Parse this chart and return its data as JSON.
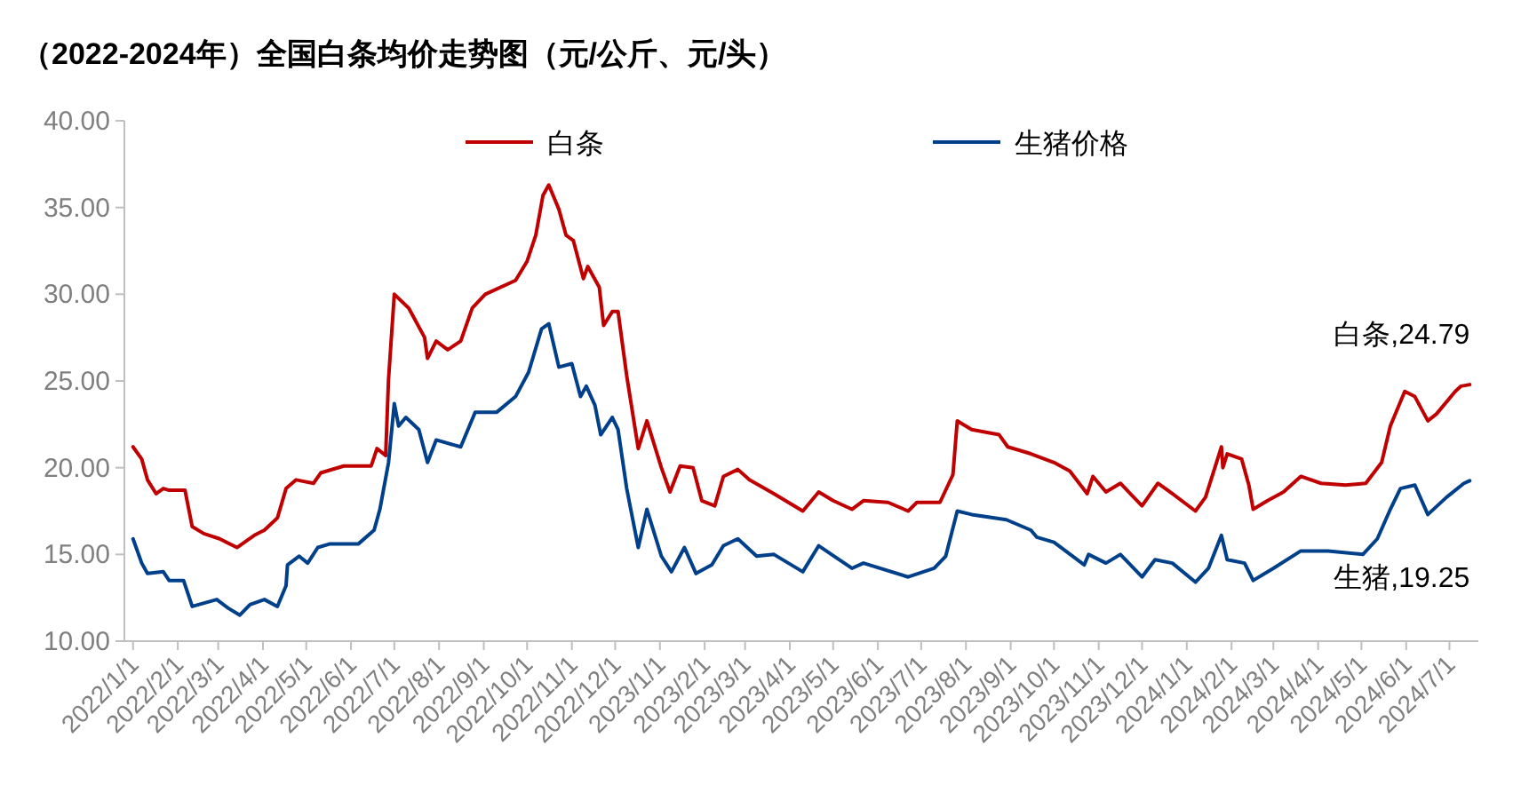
{
  "chart_data": {
    "type": "line",
    "title": "（2022-2024年）全国白条均价走势图（元/公斤、元/头）",
    "xlim": [
      "2021-12-26",
      "2024-07-21"
    ],
    "xticks": [
      {
        "value": "2022-01-01",
        "label": "2022/1/1"
      },
      {
        "value": "2022-02-01",
        "label": "2022/2/1"
      },
      {
        "value": "2022-03-01",
        "label": "2022/3/1"
      },
      {
        "value": "2022-04-01",
        "label": "2022/4/1"
      },
      {
        "value": "2022-05-01",
        "label": "2022/5/1"
      },
      {
        "value": "2022-06-01",
        "label": "2022/6/1"
      },
      {
        "value": "2022-07-01",
        "label": "2022/7/1"
      },
      {
        "value": "2022-08-01",
        "label": "2022/8/1"
      },
      {
        "value": "2022-09-01",
        "label": "2022/9/1"
      },
      {
        "value": "2022-10-01",
        "label": "2022/10/1"
      },
      {
        "value": "2022-11-01",
        "label": "2022/11/1"
      },
      {
        "value": "2022-12-01",
        "label": "2022/12/1"
      },
      {
        "value": "2023-01-01",
        "label": "2023/1/1"
      },
      {
        "value": "2023-02-01",
        "label": "2023/2/1"
      },
      {
        "value": "2023-03-01",
        "label": "2023/3/1"
      },
      {
        "value": "2023-04-01",
        "label": "2023/4/1"
      },
      {
        "value": "2023-05-01",
        "label": "2023/5/1"
      },
      {
        "value": "2023-06-01",
        "label": "2023/6/1"
      },
      {
        "value": "2023-07-01",
        "label": "2023/7/1"
      },
      {
        "value": "2023-08-01",
        "label": "2023/8/1"
      },
      {
        "value": "2023-09-01",
        "label": "2023/9/1"
      },
      {
        "value": "2023-10-01",
        "label": "2023/10/1"
      },
      {
        "value": "2023-11-01",
        "label": "2023/11/1"
      },
      {
        "value": "2023-12-01",
        "label": "2023/12/1"
      },
      {
        "value": "2024-01-01",
        "label": "2024/1/1"
      },
      {
        "value": "2024-02-01",
        "label": "2024/2/1"
      },
      {
        "value": "2024-03-01",
        "label": "2024/3/1"
      },
      {
        "value": "2024-04-01",
        "label": "2024/4/1"
      },
      {
        "value": "2024-05-01",
        "label": "2024/5/1"
      },
      {
        "value": "2024-06-01",
        "label": "2024/6/1"
      },
      {
        "value": "2024-07-01",
        "label": "2024/7/1"
      }
    ],
    "ylim": [
      10,
      40
    ],
    "yticks": [
      {
        "value": 10,
        "label": "10.00"
      },
      {
        "value": 15,
        "label": "15.00"
      },
      {
        "value": 20,
        "label": "20.00"
      },
      {
        "value": 25,
        "label": "25.00"
      },
      {
        "value": 30,
        "label": "30.00"
      },
      {
        "value": 35,
        "label": "35.00"
      },
      {
        "value": 40,
        "label": "40.00"
      }
    ],
    "grid": false,
    "legend": "top",
    "marker": "none",
    "line_style": "solid",
    "series": [
      {
        "name": "白条",
        "color": "#c00000",
        "x": [
          "2022-01-01",
          "2022-01-07",
          "2022-01-11",
          "2022-01-17",
          "2022-01-22",
          "2022-01-26",
          "2022-02-06",
          "2022-02-11",
          "2022-02-19",
          "2022-03-02",
          "2022-03-14",
          "2022-03-26",
          "2022-04-02",
          "2022-04-11",
          "2022-04-17",
          "2022-04-24",
          "2022-05-06",
          "2022-05-11",
          "2022-05-27",
          "2022-06-15",
          "2022-06-19",
          "2022-06-25",
          "2022-06-27",
          "2022-07-01",
          "2022-07-11",
          "2022-07-22",
          "2022-07-24",
          "2022-07-30",
          "2022-08-07",
          "2022-08-16",
          "2022-08-24",
          "2022-09-02",
          "2022-09-23",
          "2022-10-01",
          "2022-10-07",
          "2022-10-12",
          "2022-10-16",
          "2022-10-23",
          "2022-10-28",
          "2022-11-02",
          "2022-11-09",
          "2022-11-12",
          "2022-11-20",
          "2022-11-23",
          "2022-11-29",
          "2022-12-03",
          "2022-12-09",
          "2022-12-17",
          "2022-12-23",
          "2023-01-02",
          "2023-01-08",
          "2023-01-15",
          "2023-01-24",
          "2023-01-30",
          "2023-02-08",
          "2023-02-14",
          "2023-02-24",
          "2023-03-04",
          "2023-03-21",
          "2023-04-10",
          "2023-04-21",
          "2023-05-01",
          "2023-05-14",
          "2023-05-22",
          "2023-06-08",
          "2023-06-22",
          "2023-06-28",
          "2023-07-14",
          "2023-07-23",
          "2023-07-26",
          "2023-08-05",
          "2023-08-24",
          "2023-08-30",
          "2023-09-15",
          "2023-10-01",
          "2023-10-12",
          "2023-10-24",
          "2023-10-28",
          "2023-11-06",
          "2023-11-16",
          "2023-12-01",
          "2023-12-12",
          "2023-12-22",
          "2024-01-07",
          "2024-01-14",
          "2024-01-25",
          "2024-01-26",
          "2024-01-29",
          "2024-02-08",
          "2024-02-13",
          "2024-02-16",
          "2024-02-26",
          "2024-03-08",
          "2024-03-20",
          "2024-04-03",
          "2024-04-20",
          "2024-05-04",
          "2024-05-15",
          "2024-05-21",
          "2024-05-31",
          "2024-06-07",
          "2024-06-16",
          "2024-06-22",
          "2024-07-05",
          "2024-07-09",
          "2024-07-15"
        ],
        "values": [
          21.2,
          20.5,
          19.3,
          18.5,
          18.8,
          18.7,
          18.7,
          16.6,
          16.2,
          15.9,
          15.4,
          16.1,
          16.4,
          17.1,
          18.8,
          19.3,
          19.1,
          19.7,
          20.1,
          20.1,
          21.1,
          20.7,
          25.1,
          30.0,
          29.2,
          27.5,
          26.3,
          27.3,
          26.8,
          27.3,
          29.2,
          30.0,
          30.8,
          31.9,
          33.4,
          35.7,
          36.3,
          34.9,
          33.4,
          33.1,
          30.9,
          31.6,
          30.4,
          28.2,
          29.0,
          29.0,
          25.3,
          21.1,
          22.7,
          20.0,
          18.6,
          20.1,
          20.0,
          18.1,
          17.8,
          19.5,
          19.9,
          19.3,
          18.5,
          17.5,
          18.6,
          18.1,
          17.6,
          18.1,
          18.0,
          17.5,
          18.0,
          18.0,
          19.6,
          22.7,
          22.2,
          21.9,
          21.2,
          20.8,
          20.3,
          19.8,
          18.5,
          19.5,
          18.6,
          19.1,
          17.8,
          19.1,
          18.5,
          17.5,
          18.3,
          21.2,
          20.0,
          20.8,
          20.5,
          19.0,
          17.6,
          18.1,
          18.6,
          19.5,
          19.1,
          19.0,
          19.1,
          20.3,
          22.4,
          24.4,
          24.1,
          22.7,
          23.1,
          24.4,
          24.7,
          24.79
        ]
      },
      {
        "name": "生猪价格",
        "color": "#003f8a",
        "x": [
          "2022-01-01",
          "2022-01-07",
          "2022-01-11",
          "2022-01-22",
          "2022-01-26",
          "2022-02-05",
          "2022-02-11",
          "2022-02-28",
          "2022-03-08",
          "2022-03-16",
          "2022-03-23",
          "2022-04-02",
          "2022-04-11",
          "2022-04-17",
          "2022-04-18",
          "2022-04-26",
          "2022-05-02",
          "2022-05-09",
          "2022-05-17",
          "2022-06-06",
          "2022-06-17",
          "2022-06-21",
          "2022-06-27",
          "2022-07-01",
          "2022-07-04",
          "2022-07-09",
          "2022-07-18",
          "2022-07-24",
          "2022-07-30",
          "2022-08-16",
          "2022-08-26",
          "2022-09-10",
          "2022-09-23",
          "2022-10-02",
          "2022-10-11",
          "2022-10-16",
          "2022-10-23",
          "2022-11-01",
          "2022-11-07",
          "2022-11-11",
          "2022-11-17",
          "2022-11-21",
          "2022-11-29",
          "2022-12-03",
          "2022-12-09",
          "2022-12-17",
          "2022-12-23",
          "2023-01-02",
          "2023-01-09",
          "2023-01-18",
          "2023-01-26",
          "2023-02-06",
          "2023-02-14",
          "2023-02-24",
          "2023-03-09",
          "2023-03-21",
          "2023-04-10",
          "2023-04-21",
          "2023-05-14",
          "2023-05-22",
          "2023-06-22",
          "2023-07-10",
          "2023-07-18",
          "2023-07-26",
          "2023-08-05",
          "2023-08-29",
          "2023-09-15",
          "2023-09-19",
          "2023-10-01",
          "2023-10-22",
          "2023-10-25",
          "2023-11-06",
          "2023-11-16",
          "2023-12-01",
          "2023-12-10",
          "2023-12-22",
          "2024-01-07",
          "2024-01-16",
          "2024-01-25",
          "2024-01-29",
          "2024-02-10",
          "2024-02-16",
          "2024-03-01",
          "2024-03-20",
          "2024-04-08",
          "2024-05-02",
          "2024-05-12",
          "2024-05-21",
          "2024-05-28",
          "2024-06-07",
          "2024-06-16",
          "2024-06-29",
          "2024-07-11",
          "2024-07-15"
        ],
        "values": [
          15.9,
          14.5,
          13.9,
          14.0,
          13.5,
          13.5,
          12.0,
          12.4,
          11.9,
          11.5,
          12.1,
          12.4,
          12.0,
          13.2,
          14.4,
          14.9,
          14.5,
          15.4,
          15.6,
          15.6,
          16.4,
          17.6,
          20.3,
          23.7,
          22.4,
          22.9,
          22.2,
          20.3,
          21.6,
          21.2,
          23.2,
          23.2,
          24.1,
          25.5,
          28.0,
          28.3,
          25.8,
          26.0,
          24.1,
          24.7,
          23.6,
          21.9,
          22.9,
          22.2,
          18.8,
          15.4,
          17.6,
          14.9,
          14.0,
          15.4,
          13.9,
          14.4,
          15.5,
          15.9,
          14.9,
          15.0,
          14.0,
          15.5,
          14.2,
          14.5,
          13.7,
          14.2,
          14.9,
          17.5,
          17.3,
          17.0,
          16.4,
          16.0,
          15.7,
          14.4,
          15.0,
          14.5,
          15.0,
          13.7,
          14.7,
          14.5,
          13.4,
          14.2,
          16.1,
          14.7,
          14.5,
          13.5,
          14.2,
          15.2,
          15.2,
          15.0,
          15.9,
          17.6,
          18.8,
          19.0,
          17.3,
          18.3,
          19.1,
          19.25
        ]
      }
    ],
    "annotations": [
      {
        "text": "白条,24.79",
        "x": "2024-07-15",
        "y": 24.79
      },
      {
        "text": "生猪,19.25",
        "x": "2024-07-15",
        "y": 19.25
      }
    ]
  }
}
